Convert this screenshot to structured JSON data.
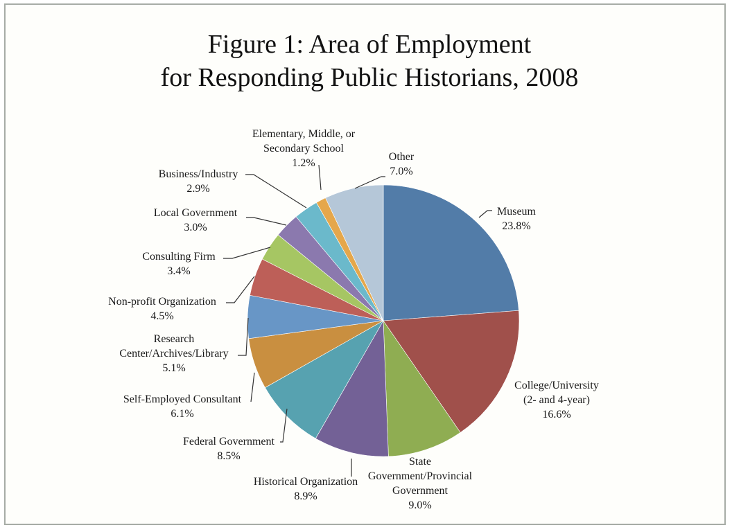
{
  "chart_data": {
    "type": "pie",
    "title": "Figure 1: Area of Employment for Responding Public Historians, 2008",
    "title_lines": [
      "Figure 1: Area of Employment",
      "for Responding Public Historians, 2008"
    ],
    "start_angle_deg": 0,
    "direction": "clockwise",
    "legend": "none (leader-line data labels)",
    "slices": [
      {
        "label": "Museum",
        "value": 23.8,
        "pct": "23.8%",
        "color": "#527ca8"
      },
      {
        "label": "College/University (2- and 4-year)",
        "value": 16.6,
        "pct": "16.6%",
        "color": "#a0504b"
      },
      {
        "label": "State Government/Provincial Government",
        "value": 9.0,
        "pct": "9.0%",
        "color": "#8fad52"
      },
      {
        "label": "Historical Organization",
        "value": 8.9,
        "pct": "8.9%",
        "color": "#736196"
      },
      {
        "label": "Federal Government",
        "value": 8.5,
        "pct": "8.5%",
        "color": "#57a2b0"
      },
      {
        "label": "Self-Employed Consultant",
        "value": 6.1,
        "pct": "6.1%",
        "color": "#c98f40"
      },
      {
        "label": "Research Center/Archives/Library",
        "value": 5.1,
        "pct": "5.1%",
        "color": "#6896c6"
      },
      {
        "label": "Non-profit Organization",
        "value": 4.5,
        "pct": "4.5%",
        "color": "#bd5f58"
      },
      {
        "label": "Consulting Firm",
        "value": 3.4,
        "pct": "3.4%",
        "color": "#a6c663"
      },
      {
        "label": "Local Government",
        "value": 3.0,
        "pct": "3.0%",
        "color": "#8b79ae"
      },
      {
        "label": "Business/Industry",
        "value": 2.9,
        "pct": "2.9%",
        "color": "#6bb9cb"
      },
      {
        "label": "Elementary, Middle, or Secondary School",
        "value": 1.2,
        "pct": "1.2%",
        "color": "#e5a74b"
      },
      {
        "label": "Other",
        "value": 7.0,
        "pct": "7.0%",
        "color": "#b5c7d8"
      }
    ]
  },
  "labels": {
    "museum": {
      "line1": "Museum",
      "pct": "23.8%"
    },
    "college": {
      "line1": "College/University",
      "line2": "(2- and 4-year)",
      "pct": "16.6%"
    },
    "state": {
      "line1": "State",
      "line2": "Government/Provincial",
      "line3": "Government",
      "pct": "9.0%"
    },
    "historical": {
      "line1": "Historical Organization",
      "pct": "8.9%"
    },
    "federal": {
      "line1": "Federal Government",
      "pct": "8.5%"
    },
    "selfemployed": {
      "line1": "Self-Employed Consultant",
      "pct": "6.1%"
    },
    "research": {
      "line1": "Research",
      "line2": "Center/Archives/Library",
      "pct": "5.1%"
    },
    "nonprofit": {
      "line1": "Non-profit Organization",
      "pct": "4.5%"
    },
    "consulting": {
      "line1": "Consulting Firm",
      "pct": "3.4%"
    },
    "local": {
      "line1": "Local Government",
      "pct": "3.0%"
    },
    "business": {
      "line1": "Business/Industry",
      "pct": "2.9%"
    },
    "school": {
      "line1": "Elementary, Middle, or",
      "line2": "Secondary School",
      "pct": "1.2%"
    },
    "other": {
      "line1": "Other",
      "pct": "7.0%"
    }
  },
  "style": {
    "frame_border": "#a7aca6",
    "background": "#fefefb",
    "leader_color": "#333333"
  }
}
